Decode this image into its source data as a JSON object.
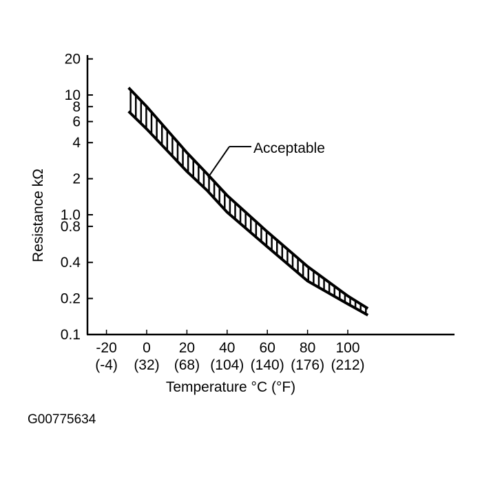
{
  "chart_data": {
    "type": "area",
    "title": "",
    "xlabel": "Temperature °C (°F)",
    "ylabel": "Resistance kΩ",
    "y_scale": "log",
    "ylim": [
      0.1,
      20
    ],
    "xlim": [
      -30,
      150
    ],
    "x_ticks": [
      {
        "c": -20,
        "label": "-20",
        "f_label": "(-4)"
      },
      {
        "c": 0,
        "label": "0",
        "f_label": "(32)"
      },
      {
        "c": 20,
        "label": "20",
        "f_label": "(68)"
      },
      {
        "c": 40,
        "label": "40",
        "f_label": "(104)"
      },
      {
        "c": 60,
        "label": "60",
        "f_label": "(140)"
      },
      {
        "c": 80,
        "label": "80",
        "f_label": "(176)"
      },
      {
        "c": 100,
        "label": "100",
        "f_label": "(212)"
      }
    ],
    "y_ticks": [
      {
        "v": 20,
        "label": "20"
      },
      {
        "v": 10,
        "label": "10"
      },
      {
        "v": 8,
        "label": "8"
      },
      {
        "v": 6,
        "label": "6"
      },
      {
        "v": 4,
        "label": "4"
      },
      {
        "v": 2,
        "label": "2"
      },
      {
        "v": 1.0,
        "label": "1.0"
      },
      {
        "v": 0.8,
        "label": "0.8"
      },
      {
        "v": 0.4,
        "label": "0.4"
      },
      {
        "v": 0.2,
        "label": "0.2"
      },
      {
        "v": 0.1,
        "label": "0.1"
      }
    ],
    "band": {
      "name": "Acceptable",
      "x": [
        -9,
        0,
        20,
        30,
        40,
        60,
        80,
        100,
        110
      ],
      "upper": [
        11.5,
        8.0,
        3.3,
        2.2,
        1.45,
        0.72,
        0.37,
        0.21,
        0.165
      ],
      "lower": [
        7.3,
        5.2,
        2.3,
        1.6,
        1.05,
        0.54,
        0.28,
        0.18,
        0.145
      ]
    },
    "grid": false,
    "color": "#000000"
  },
  "figure_code": "G00775634"
}
